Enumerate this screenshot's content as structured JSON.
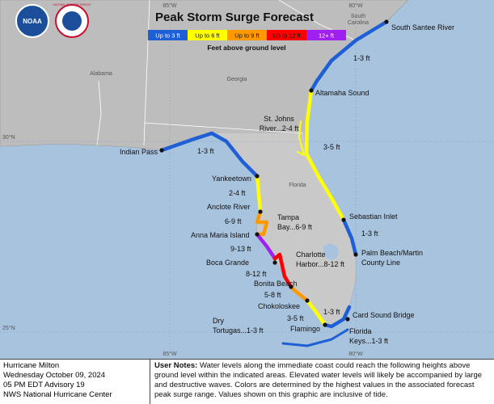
{
  "title": "Peak Storm Surge Forecast",
  "legend": {
    "items": [
      {
        "label": "Up to 3 ft",
        "color": "#1f5fd6"
      },
      {
        "label": "Up to 6 ft",
        "color": "#ffff00"
      },
      {
        "label": "Up to 9 ft",
        "color": "#ff9900"
      },
      {
        "label": "Up to 12 ft",
        "color": "#ff0000"
      },
      {
        "label": "12+ ft",
        "color": "#a020f0"
      }
    ],
    "caption": "Feet above ground level"
  },
  "logos": {
    "noaa": "NOAA",
    "nws": "NATIONAL WEATHER SERVICE"
  },
  "grid_labels": [
    "85°W",
    "80°W",
    "30°N",
    "25°N",
    "85°W",
    "80°W"
  ],
  "regions": [
    {
      "lines": [
        "Alabama"
      ]
    },
    {
      "lines": [
        "Georgia"
      ]
    },
    {
      "lines": [
        "Florida"
      ]
    },
    {
      "lines": [
        "South",
        "Carolina"
      ]
    }
  ],
  "labels": [
    {
      "lines": [
        "South Santee River"
      ]
    },
    {
      "lines": [
        "1-3 ft"
      ]
    },
    {
      "lines": [
        "Altamaha Sound"
      ]
    },
    {
      "lines": [
        "St. Johns",
        "River...2-4 ft"
      ]
    },
    {
      "lines": [
        "3-5 ft"
      ]
    },
    {
      "lines": [
        "Indian Pass"
      ]
    },
    {
      "lines": [
        "1-3 ft"
      ]
    },
    {
      "lines": [
        "Yankeetown"
      ]
    },
    {
      "lines": [
        "2-4 ft"
      ]
    },
    {
      "lines": [
        "Anclote River"
      ]
    },
    {
      "lines": [
        "6-9 ft"
      ]
    },
    {
      "lines": [
        "Tampa",
        "Bay...6-9 ft"
      ]
    },
    {
      "lines": [
        "Sebastian Inlet"
      ]
    },
    {
      "lines": [
        "1-3 ft"
      ]
    },
    {
      "lines": [
        "Palm Beach/Martin",
        "County Line"
      ]
    },
    {
      "lines": [
        "Anna Maria Island"
      ]
    },
    {
      "lines": [
        "9-13 ft"
      ]
    },
    {
      "lines": [
        "Boca Grande"
      ]
    },
    {
      "lines": [
        "Charlotte",
        "Harbor...8-12 ft"
      ]
    },
    {
      "lines": [
        "8-12 ft"
      ]
    },
    {
      "lines": [
        "Bonita Beach"
      ]
    },
    {
      "lines": [
        "5-8 ft"
      ]
    },
    {
      "lines": [
        "Chokoloskee"
      ]
    },
    {
      "lines": [
        "1-3 ft"
      ]
    },
    {
      "lines": [
        "3-5 ft"
      ]
    },
    {
      "lines": [
        "Card Sound Bridge"
      ]
    },
    {
      "lines": [
        "Flamingo"
      ]
    },
    {
      "lines": [
        "Dry",
        "Tortugas...1-3 ft"
      ]
    },
    {
      "lines": [
        "Florida",
        "Keys...1-3 ft"
      ]
    }
  ],
  "footer": {
    "info": [
      "Hurricane Milton",
      "Wednesday October 09, 2024",
      "05 PM EDT Advisory 19",
      "NWS National Hurricane Center"
    ],
    "notes_heading": "User Notes:",
    "notes": "Water levels along the immediate coast could reach the following heights above ground level within the indicated areas. Elevated water levels will likely be accompanied by large and destructive waves. Colors are determined by the highest values in the associated forecast peak surge range. Values shown on this graphic are inclusive of tide."
  }
}
